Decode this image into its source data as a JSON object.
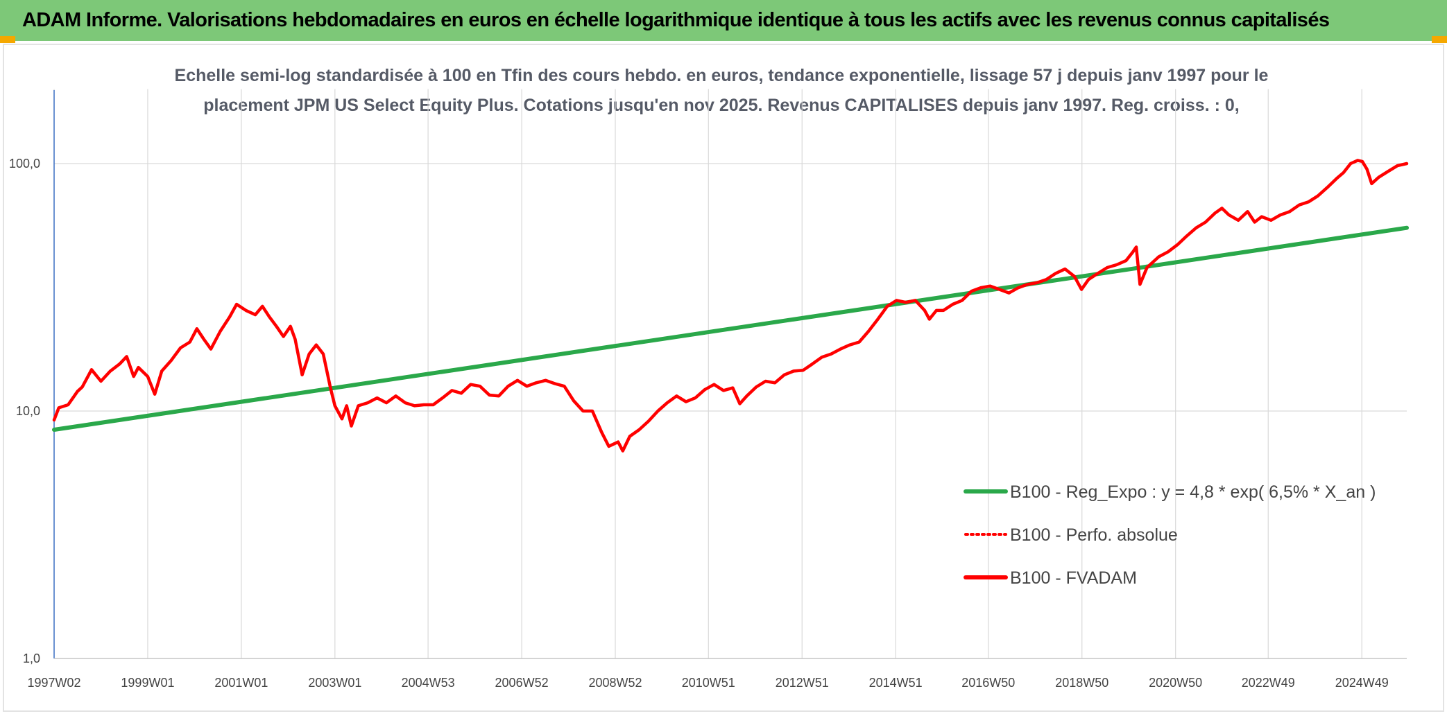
{
  "header": {
    "title": "ADAM Informe. Valorisations hebdomadaires en euros en échelle logarithmique identique à tous les actifs avec les revenus connus capitalisés"
  },
  "chart_data": {
    "type": "line",
    "title": "",
    "subtitle_lines": [
      "Echelle semi-log standardisée à 100 en Tfin des cours hebdo. en euros, tendance exponentielle, lissage 57 j depuis janv 1997 pour le",
      "placement JPM US Select Equity Plus. Cotations jusqu'en nov 2025. Revenus CAPITALISES depuis janv 1997. Reg. croiss. : 0,"
    ],
    "y_scale": "log",
    "ylim": [
      1,
      200
    ],
    "y_ticks": [
      {
        "value": 1,
        "label": "1,0"
      },
      {
        "value": 10,
        "label": "10,0"
      },
      {
        "value": 100,
        "label": "100,0"
      }
    ],
    "xlim": [
      1997.0,
      2025.9
    ],
    "x_ticks": [
      {
        "x": 1997.0,
        "label": "1997W02"
      },
      {
        "x": 1999.0,
        "label": "1999W01"
      },
      {
        "x": 2001.0,
        "label": "2001W01"
      },
      {
        "x": 2003.0,
        "label": "2003W01"
      },
      {
        "x": 2004.99,
        "label": "2004W53"
      },
      {
        "x": 2006.99,
        "label": "2006W52"
      },
      {
        "x": 2008.99,
        "label": "2008W52"
      },
      {
        "x": 2010.98,
        "label": "2010W51"
      },
      {
        "x": 2012.98,
        "label": "2012W51"
      },
      {
        "x": 2014.98,
        "label": "2014W51"
      },
      {
        "x": 2016.96,
        "label": "2016W50"
      },
      {
        "x": 2018.96,
        "label": "2018W50"
      },
      {
        "x": 2020.96,
        "label": "2020W50"
      },
      {
        "x": 2022.94,
        "label": "2022W49"
      },
      {
        "x": 2024.94,
        "label": "2024W49"
      }
    ],
    "grid": "vertical and horizontal",
    "legend_position": "bottom-right inside plot",
    "series": [
      {
        "name": "B100 - Reg_Expo : y = 4,8 * exp( 6,5% *  X_an )",
        "color": "#2aa84a",
        "style": "solid",
        "points": [
          [
            1997.0,
            8.4
          ],
          [
            2025.9,
            55.0
          ]
        ]
      },
      {
        "name": "B100 - Perfo. absolue",
        "color": "#ff0000",
        "style": "dotted",
        "points": []
      },
      {
        "name": "B100 - FVADAM",
        "color": "#ff0000",
        "style": "solid",
        "points": [
          [
            1997.0,
            9.2
          ],
          [
            1997.1,
            10.3
          ],
          [
            1997.3,
            10.6
          ],
          [
            1997.5,
            12.0
          ],
          [
            1997.6,
            12.5
          ],
          [
            1997.8,
            14.7
          ],
          [
            1998.0,
            13.2
          ],
          [
            1998.2,
            14.5
          ],
          [
            1998.4,
            15.5
          ],
          [
            1998.55,
            16.6
          ],
          [
            1998.7,
            13.8
          ],
          [
            1998.8,
            15.0
          ],
          [
            1999.0,
            13.8
          ],
          [
            1999.15,
            11.7
          ],
          [
            1999.3,
            14.5
          ],
          [
            1999.5,
            16.0
          ],
          [
            1999.7,
            18.0
          ],
          [
            1999.9,
            19.0
          ],
          [
            2000.05,
            21.5
          ],
          [
            2000.2,
            19.5
          ],
          [
            2000.35,
            17.8
          ],
          [
            2000.55,
            21.0
          ],
          [
            2000.75,
            24.0
          ],
          [
            2000.9,
            27.0
          ],
          [
            2001.1,
            25.5
          ],
          [
            2001.3,
            24.5
          ],
          [
            2001.45,
            26.5
          ],
          [
            2001.6,
            24.0
          ],
          [
            2001.75,
            22.0
          ],
          [
            2001.9,
            20.0
          ],
          [
            2002.05,
            22.0
          ],
          [
            2002.15,
            19.5
          ],
          [
            2002.3,
            14.0
          ],
          [
            2002.45,
            17.0
          ],
          [
            2002.6,
            18.5
          ],
          [
            2002.75,
            17.0
          ],
          [
            2002.9,
            12.5
          ],
          [
            2003.0,
            10.5
          ],
          [
            2003.15,
            9.3
          ],
          [
            2003.25,
            10.5
          ],
          [
            2003.35,
            8.7
          ],
          [
            2003.5,
            10.5
          ],
          [
            2003.7,
            10.8
          ],
          [
            2003.9,
            11.3
          ],
          [
            2004.1,
            10.8
          ],
          [
            2004.3,
            11.5
          ],
          [
            2004.5,
            10.8
          ],
          [
            2004.7,
            10.5
          ],
          [
            2004.9,
            10.6
          ],
          [
            2005.1,
            10.6
          ],
          [
            2005.3,
            11.3
          ],
          [
            2005.5,
            12.1
          ],
          [
            2005.7,
            11.8
          ],
          [
            2005.9,
            12.8
          ],
          [
            2006.1,
            12.6
          ],
          [
            2006.3,
            11.6
          ],
          [
            2006.5,
            11.5
          ],
          [
            2006.7,
            12.6
          ],
          [
            2006.9,
            13.3
          ],
          [
            2007.1,
            12.6
          ],
          [
            2007.3,
            13.0
          ],
          [
            2007.5,
            13.3
          ],
          [
            2007.7,
            12.9
          ],
          [
            2007.9,
            12.6
          ],
          [
            2008.1,
            11.0
          ],
          [
            2008.3,
            10.0
          ],
          [
            2008.5,
            10.0
          ],
          [
            2008.7,
            8.2
          ],
          [
            2008.85,
            7.2
          ],
          [
            2009.05,
            7.5
          ],
          [
            2009.15,
            6.9
          ],
          [
            2009.3,
            7.9
          ],
          [
            2009.5,
            8.4
          ],
          [
            2009.7,
            9.1
          ],
          [
            2009.9,
            10.0
          ],
          [
            2010.1,
            10.8
          ],
          [
            2010.3,
            11.5
          ],
          [
            2010.5,
            10.9
          ],
          [
            2010.7,
            11.3
          ],
          [
            2010.9,
            12.2
          ],
          [
            2011.1,
            12.8
          ],
          [
            2011.3,
            12.1
          ],
          [
            2011.5,
            12.4
          ],
          [
            2011.65,
            10.7
          ],
          [
            2011.8,
            11.5
          ],
          [
            2012.0,
            12.5
          ],
          [
            2012.2,
            13.2
          ],
          [
            2012.4,
            13.0
          ],
          [
            2012.6,
            14.0
          ],
          [
            2012.8,
            14.5
          ],
          [
            2013.0,
            14.6
          ],
          [
            2013.2,
            15.5
          ],
          [
            2013.4,
            16.5
          ],
          [
            2013.6,
            17.0
          ],
          [
            2013.8,
            17.8
          ],
          [
            2014.0,
            18.5
          ],
          [
            2014.2,
            19.0
          ],
          [
            2014.4,
            21.0
          ],
          [
            2014.6,
            23.5
          ],
          [
            2014.8,
            26.5
          ],
          [
            2015.0,
            28.0
          ],
          [
            2015.2,
            27.5
          ],
          [
            2015.4,
            28.0
          ],
          [
            2015.6,
            25.5
          ],
          [
            2015.7,
            23.5
          ],
          [
            2015.85,
            25.5
          ],
          [
            2016.0,
            25.5
          ],
          [
            2016.2,
            27.0
          ],
          [
            2016.4,
            28.0
          ],
          [
            2016.6,
            30.5
          ],
          [
            2016.8,
            31.5
          ],
          [
            2017.0,
            32.0
          ],
          [
            2017.2,
            31.0
          ],
          [
            2017.4,
            30.0
          ],
          [
            2017.6,
            31.5
          ],
          [
            2017.8,
            32.5
          ],
          [
            2018.0,
            33.0
          ],
          [
            2018.2,
            34.0
          ],
          [
            2018.4,
            36.0
          ],
          [
            2018.6,
            37.5
          ],
          [
            2018.8,
            35.0
          ],
          [
            2018.95,
            31.0
          ],
          [
            2019.1,
            34.0
          ],
          [
            2019.3,
            36.0
          ],
          [
            2019.5,
            38.0
          ],
          [
            2019.7,
            39.0
          ],
          [
            2019.9,
            40.5
          ],
          [
            2020.05,
            44.0
          ],
          [
            2020.12,
            46.0
          ],
          [
            2020.2,
            32.5
          ],
          [
            2020.35,
            38.0
          ],
          [
            2020.6,
            42.0
          ],
          [
            2020.8,
            44.0
          ],
          [
            2021.0,
            47.0
          ],
          [
            2021.2,
            51.0
          ],
          [
            2021.4,
            55.0
          ],
          [
            2021.6,
            58.0
          ],
          [
            2021.8,
            63.0
          ],
          [
            2021.95,
            66.0
          ],
          [
            2022.1,
            62.0
          ],
          [
            2022.3,
            59.0
          ],
          [
            2022.5,
            64.0
          ],
          [
            2022.65,
            58.0
          ],
          [
            2022.8,
            61.0
          ],
          [
            2023.0,
            59.0
          ],
          [
            2023.2,
            62.0
          ],
          [
            2023.4,
            64.0
          ],
          [
            2023.6,
            68.0
          ],
          [
            2023.8,
            70.0
          ],
          [
            2024.0,
            74.0
          ],
          [
            2024.2,
            80.0
          ],
          [
            2024.4,
            87.0
          ],
          [
            2024.55,
            92.0
          ],
          [
            2024.7,
            100.0
          ],
          [
            2024.85,
            103.0
          ],
          [
            2024.95,
            102.0
          ],
          [
            2025.05,
            95.0
          ],
          [
            2025.15,
            83.0
          ],
          [
            2025.3,
            88.0
          ],
          [
            2025.5,
            93.0
          ],
          [
            2025.7,
            98.0
          ],
          [
            2025.9,
            100.0
          ]
        ]
      }
    ]
  }
}
